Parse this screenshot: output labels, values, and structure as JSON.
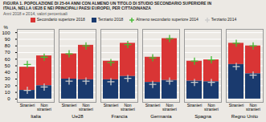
{
  "chart_data": {
    "type": "bar",
    "stacked": true,
    "title": "FIGURA 1.  POPOLAZIONE  DI 25-64 ANNI CON ALMENO UN TITOLO DI STUDIO SECONDARIO SUPERIORE IN\nITALIA, NELLA UE28 E NEI PRINCIPALI PAESI EUROPEI, PER CITTADINANZA",
    "subtitle": "Anni 2018 e 2014, valori percentuali",
    "categories": [
      "Italia",
      "Ue28",
      "Francia",
      "Germania",
      "Spagna",
      "Regno Unito"
    ],
    "groups": [
      "Stranieri",
      "Non\nstranieri"
    ],
    "series": [
      {
        "name": "Secondario superiore 2018",
        "type": "bar",
        "color": "#d93535",
        "values": [
          [
            35,
            45
          ],
          [
            38,
            52
          ],
          [
            28,
            50
          ],
          [
            38,
            63
          ],
          [
            30,
            33
          ],
          [
            32,
            42
          ]
        ]
      },
      {
        "name": "Terziario 2018",
        "type": "bar",
        "color": "#1a3a6e",
        "values": [
          [
            13,
            20
          ],
          [
            30,
            29
          ],
          [
            29,
            34
          ],
          [
            25,
            28
          ],
          [
            27,
            26
          ],
          [
            52,
            38
          ]
        ]
      },
      {
        "name": "Almeno secondario superiore 2014",
        "type": "scatter",
        "marker": "plus",
        "color": "#44bb33",
        "values": [
          [
            52,
            63
          ],
          [
            68,
            80
          ],
          [
            55,
            82
          ],
          [
            62,
            91
          ],
          [
            57,
            59
          ],
          [
            84,
            80
          ]
        ]
      },
      {
        "name": "Terziario 2014",
        "type": "scatter",
        "marker": "plus",
        "color": "#cccccc",
        "values": [
          [
            13,
            18
          ],
          [
            27,
            27
          ],
          [
            26,
            31
          ],
          [
            22,
            27
          ],
          [
            25,
            25
          ],
          [
            49,
            36
          ]
        ]
      }
    ],
    "y_label": "%",
    "ylim": [
      -5,
      105
    ],
    "yticks": [
      0,
      10,
      20,
      30,
      40,
      50,
      60,
      70,
      80,
      90,
      100
    ],
    "grid": true,
    "legend": "top",
    "background_color": "#ece9e4"
  }
}
